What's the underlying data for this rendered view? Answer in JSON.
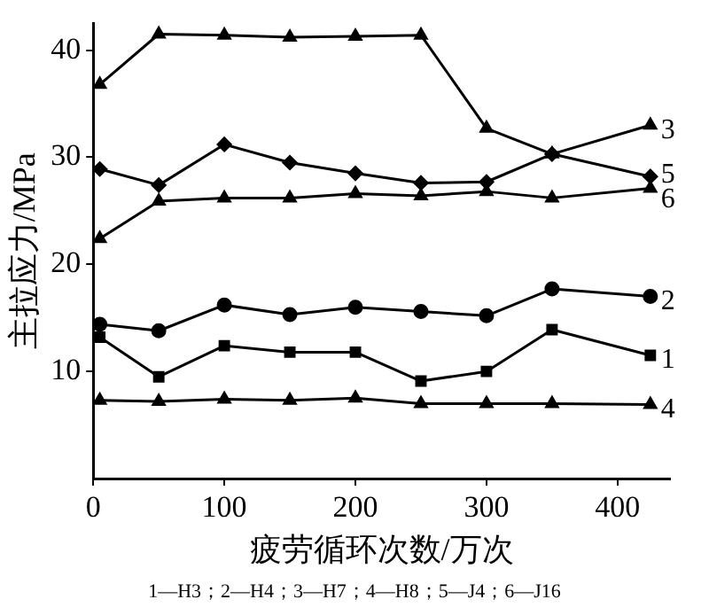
{
  "chart_data": {
    "type": "line",
    "xlabel": "疲劳循环次数/万次",
    "ylabel": "主拉应力/MPa",
    "x": [
      5,
      50,
      100,
      150,
      200,
      250,
      300,
      350,
      425
    ],
    "xlim": [
      0,
      440
    ],
    "xticks": [
      0,
      100,
      200,
      300,
      400
    ],
    "ylim": [
      0,
      42.5
    ],
    "yticks": [
      10,
      20,
      30,
      40
    ],
    "grid": false,
    "legend": false,
    "line_style": "solid",
    "series": [
      {
        "name": "1",
        "color": "#000000",
        "marker": "square",
        "values": [
          13.2,
          9.5,
          12.4,
          11.8,
          11.8,
          9.1,
          10.0,
          13.9,
          11.5
        ]
      },
      {
        "name": "2",
        "color": "#000000",
        "marker": "circle",
        "values": [
          14.4,
          13.8,
          16.2,
          15.3,
          16.0,
          15.6,
          15.2,
          17.7,
          17.0
        ]
      },
      {
        "name": "3",
        "color": "#000000",
        "marker": "triangle",
        "values": [
          36.8,
          41.5,
          41.4,
          41.2,
          41.3,
          41.4,
          32.7,
          30.3,
          33.0
        ]
      },
      {
        "name": "4",
        "color": "#000000",
        "marker": "triangle",
        "values": [
          7.3,
          7.2,
          7.4,
          7.3,
          7.5,
          7.0,
          7.0,
          7.0,
          6.9
        ]
      },
      {
        "name": "5",
        "color": "#000000",
        "marker": "diamond",
        "values": [
          28.9,
          27.4,
          31.2,
          29.5,
          28.5,
          27.6,
          27.7,
          30.3,
          28.2
        ]
      },
      {
        "name": "6",
        "color": "#000000",
        "marker": "triangle",
        "values": [
          22.4,
          25.9,
          26.2,
          26.2,
          26.6,
          26.4,
          26.8,
          26.2,
          27.1
        ]
      }
    ],
    "annotations": [
      "1—H3；2—H4；3—H7；4—H8；5—J4；6—J16"
    ]
  }
}
